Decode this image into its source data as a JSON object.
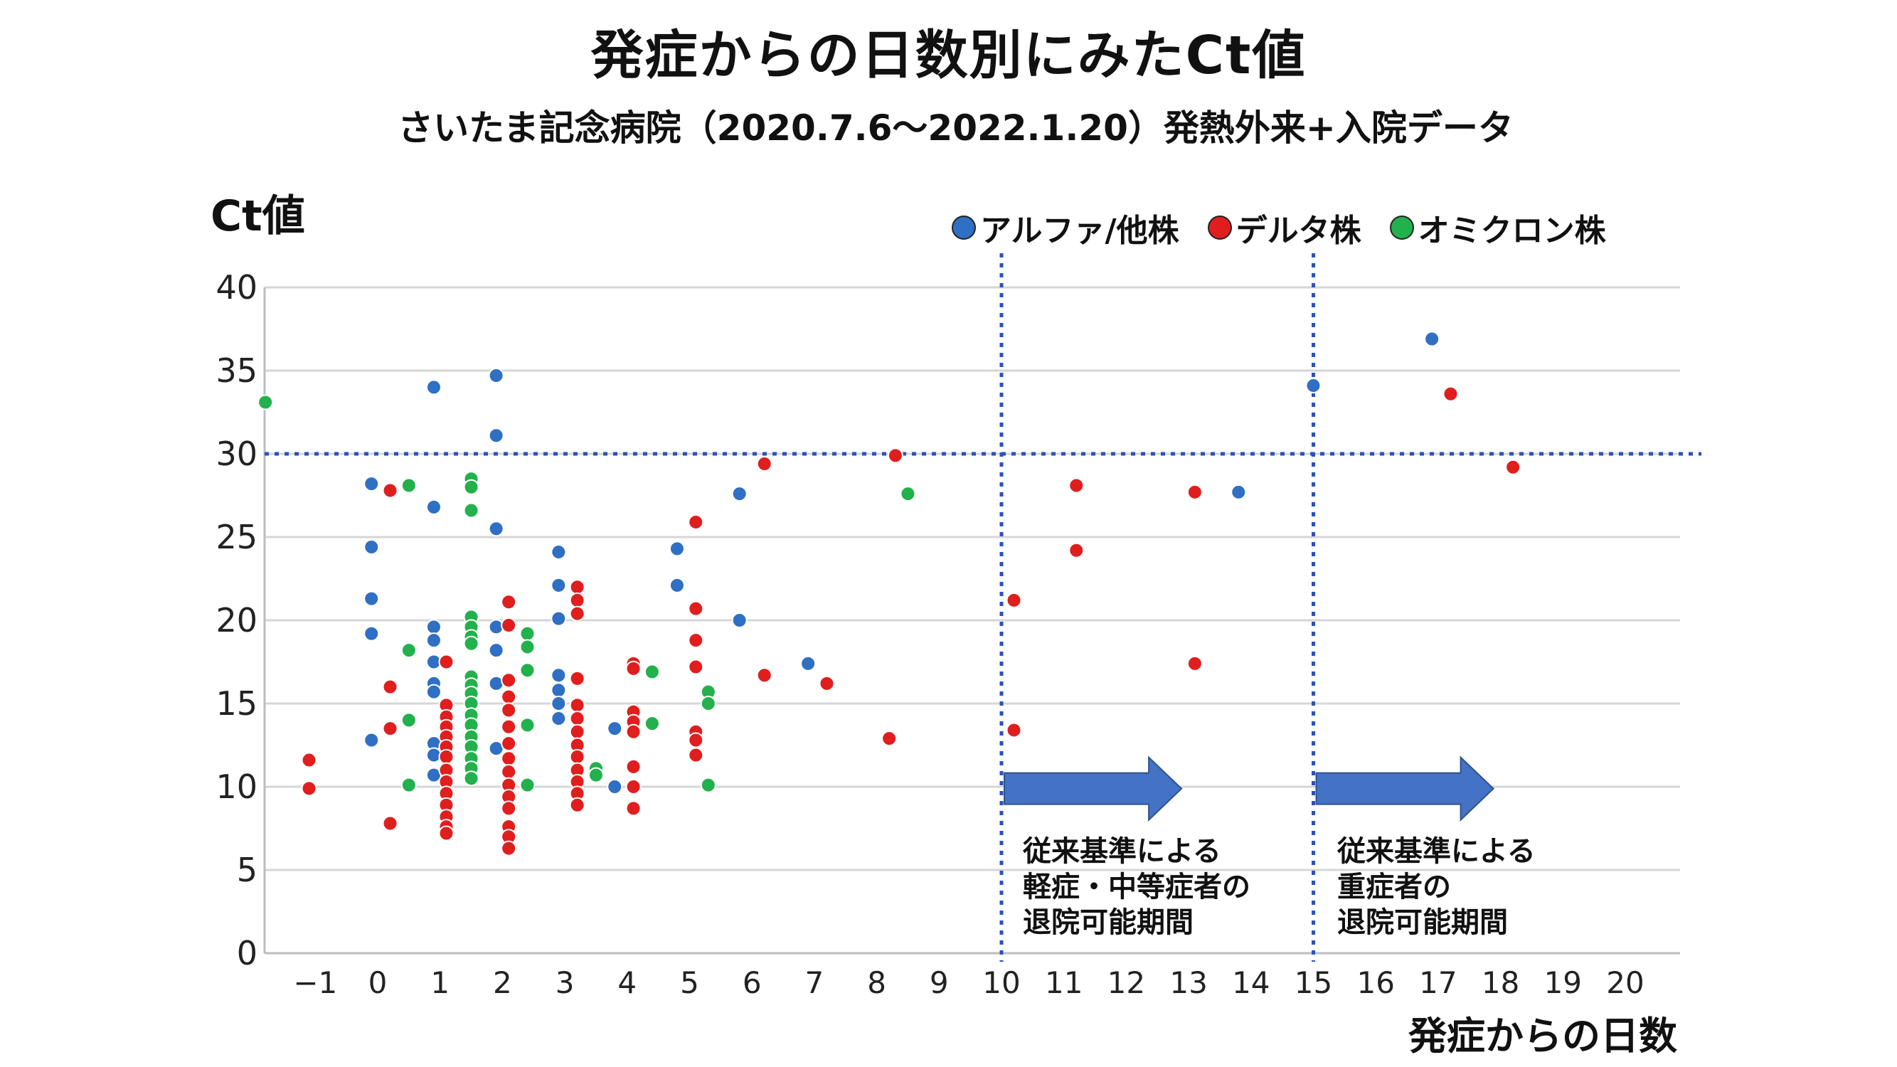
{
  "title": "発症からの日数別にみたCt値",
  "subtitle": "さいたま記念病院（2020.7.6～2022.1.20）発熱外来+入院データ",
  "chart_data": {
    "type": "scatter",
    "title": "発症からの日数別にみたCt値",
    "ylabel": "Ct値",
    "xlabel": "発症からの日数",
    "xlim": [
      -2,
      20.5
    ],
    "ylim": [
      0,
      40
    ],
    "x_ticks": [
      "−1",
      "0",
      "1",
      "2",
      "3",
      "4",
      "5",
      "6",
      "7",
      "8",
      "9",
      "10",
      "11",
      "12",
      "13",
      "14",
      "15",
      "16",
      "17",
      "18",
      "19",
      "20"
    ],
    "y_ticks": [
      "0",
      "5",
      "10",
      "15",
      "20",
      "25",
      "30",
      "35",
      "40"
    ],
    "grid": "horizontal",
    "legend_position": "top-right",
    "colors": {
      "alpha": "#2f6fc4",
      "delta": "#e01e1e",
      "omicron": "#22b14c",
      "guide": "#2a52be",
      "arrow": "#4472c4"
    },
    "series": [
      {
        "name": "アルファ/他株",
        "color": "#2f6fc4",
        "points": [
          [
            -0.1,
            28.2
          ],
          [
            -0.1,
            24.4
          ],
          [
            -0.1,
            21.3
          ],
          [
            -0.1,
            19.2
          ],
          [
            -0.1,
            12.8
          ],
          [
            0.9,
            34.0
          ],
          [
            0.9,
            26.8
          ],
          [
            0.9,
            19.6
          ],
          [
            0.9,
            18.8
          ],
          [
            0.9,
            17.5
          ],
          [
            0.9,
            16.2
          ],
          [
            0.9,
            15.7
          ],
          [
            0.9,
            12.6
          ],
          [
            0.9,
            11.9
          ],
          [
            0.9,
            10.7
          ],
          [
            1.9,
            34.7
          ],
          [
            1.9,
            31.1
          ],
          [
            1.9,
            25.5
          ],
          [
            1.9,
            19.6
          ],
          [
            1.9,
            18.2
          ],
          [
            1.9,
            16.2
          ],
          [
            1.9,
            12.3
          ],
          [
            2.9,
            24.1
          ],
          [
            2.9,
            22.1
          ],
          [
            2.9,
            20.1
          ],
          [
            2.9,
            16.7
          ],
          [
            2.9,
            15.8
          ],
          [
            2.9,
            15.0
          ],
          [
            2.9,
            14.1
          ],
          [
            3.8,
            13.5
          ],
          [
            3.8,
            10.0
          ],
          [
            4.8,
            24.3
          ],
          [
            4.8,
            22.1
          ],
          [
            5.8,
            27.6
          ],
          [
            5.8,
            20.0
          ],
          [
            6.9,
            17.4
          ],
          [
            15.0,
            34.1
          ],
          [
            16.9,
            36.9
          ],
          [
            13.8,
            27.7
          ]
        ]
      },
      {
        "name": "デルタ株",
        "color": "#e01e1e",
        "points": [
          [
            -1.1,
            11.6
          ],
          [
            -1.1,
            9.9
          ],
          [
            0.2,
            27.8
          ],
          [
            0.2,
            16.0
          ],
          [
            0.2,
            13.5
          ],
          [
            0.2,
            7.8
          ],
          [
            1.1,
            17.5
          ],
          [
            1.1,
            14.9
          ],
          [
            1.1,
            14.2
          ],
          [
            1.1,
            13.6
          ],
          [
            1.1,
            13.0
          ],
          [
            1.1,
            12.4
          ],
          [
            1.1,
            11.8
          ],
          [
            1.1,
            11.0
          ],
          [
            1.1,
            10.3
          ],
          [
            1.1,
            9.6
          ],
          [
            1.1,
            8.9
          ],
          [
            1.1,
            8.2
          ],
          [
            1.1,
            7.6
          ],
          [
            1.1,
            7.2
          ],
          [
            2.1,
            21.1
          ],
          [
            2.1,
            19.7
          ],
          [
            2.1,
            16.4
          ],
          [
            2.1,
            15.4
          ],
          [
            2.1,
            14.6
          ],
          [
            2.1,
            13.6
          ],
          [
            2.1,
            12.6
          ],
          [
            2.1,
            11.7
          ],
          [
            2.1,
            10.9
          ],
          [
            2.1,
            10.1
          ],
          [
            2.1,
            9.4
          ],
          [
            2.1,
            8.7
          ],
          [
            2.1,
            7.6
          ],
          [
            2.1,
            7.0
          ],
          [
            2.1,
            6.3
          ],
          [
            3.2,
            22.0
          ],
          [
            3.2,
            21.2
          ],
          [
            3.2,
            20.4
          ],
          [
            3.2,
            16.5
          ],
          [
            3.2,
            14.9
          ],
          [
            3.2,
            14.1
          ],
          [
            3.2,
            13.3
          ],
          [
            3.2,
            12.5
          ],
          [
            3.2,
            11.8
          ],
          [
            3.2,
            11.0
          ],
          [
            3.2,
            10.3
          ],
          [
            3.2,
            9.6
          ],
          [
            3.2,
            8.9
          ],
          [
            4.1,
            17.4
          ],
          [
            4.1,
            17.1
          ],
          [
            4.1,
            14.5
          ],
          [
            4.1,
            13.9
          ],
          [
            4.1,
            13.3
          ],
          [
            4.1,
            11.2
          ],
          [
            4.1,
            10.0
          ],
          [
            4.1,
            8.7
          ],
          [
            5.1,
            25.9
          ],
          [
            5.1,
            20.7
          ],
          [
            5.1,
            18.8
          ],
          [
            5.1,
            17.2
          ],
          [
            5.1,
            13.3
          ],
          [
            5.1,
            12.8
          ],
          [
            5.1,
            11.9
          ],
          [
            6.2,
            29.4
          ],
          [
            6.2,
            16.7
          ],
          [
            7.2,
            16.2
          ],
          [
            8.2,
            12.9
          ],
          [
            8.3,
            29.9
          ],
          [
            10.2,
            21.2
          ],
          [
            10.2,
            13.4
          ],
          [
            11.2,
            28.1
          ],
          [
            11.2,
            24.2
          ],
          [
            13.1,
            27.7
          ],
          [
            13.1,
            17.4
          ],
          [
            17.2,
            33.6
          ],
          [
            18.2,
            29.2
          ]
        ]
      },
      {
        "name": "オミクロン株",
        "color": "#22b14c",
        "points": [
          [
            -1.8,
            33.1
          ],
          [
            0.5,
            28.1
          ],
          [
            0.5,
            18.2
          ],
          [
            0.5,
            14.0
          ],
          [
            0.5,
            10.1
          ],
          [
            1.5,
            28.5
          ],
          [
            1.5,
            28.0
          ],
          [
            1.5,
            26.6
          ],
          [
            1.5,
            20.2
          ],
          [
            1.5,
            19.6
          ],
          [
            1.5,
            19.0
          ],
          [
            1.5,
            18.6
          ],
          [
            1.5,
            16.6
          ],
          [
            1.5,
            16.1
          ],
          [
            1.5,
            15.6
          ],
          [
            1.5,
            15.0
          ],
          [
            1.5,
            14.3
          ],
          [
            1.5,
            13.7
          ],
          [
            1.5,
            13.0
          ],
          [
            1.5,
            12.4
          ],
          [
            1.5,
            11.7
          ],
          [
            1.5,
            11.1
          ],
          [
            1.5,
            10.5
          ],
          [
            2.4,
            19.2
          ],
          [
            2.4,
            18.4
          ],
          [
            2.4,
            17.0
          ],
          [
            2.4,
            13.7
          ],
          [
            2.4,
            10.1
          ],
          [
            3.5,
            11.1
          ],
          [
            3.5,
            10.7
          ],
          [
            4.4,
            16.9
          ],
          [
            4.4,
            13.8
          ],
          [
            5.3,
            15.7
          ],
          [
            5.3,
            15.0
          ],
          [
            5.3,
            10.1
          ],
          [
            8.5,
            27.6
          ]
        ]
      }
    ],
    "reference_lines": [
      {
        "axis": "y",
        "value": 30
      },
      {
        "axis": "x",
        "value": 10
      },
      {
        "axis": "x",
        "value": 15
      }
    ],
    "annotations": [
      {
        "from_x": 10,
        "to_x": 13,
        "at_y": 9.8,
        "lines": [
          "従来基準による",
          "軽症・中等症者の",
          "退院可能期間"
        ]
      },
      {
        "from_x": 15,
        "to_x": 18,
        "at_y": 9.8,
        "lines": [
          "従来基準による",
          "重症者の",
          "退院可能期間"
        ]
      }
    ]
  }
}
